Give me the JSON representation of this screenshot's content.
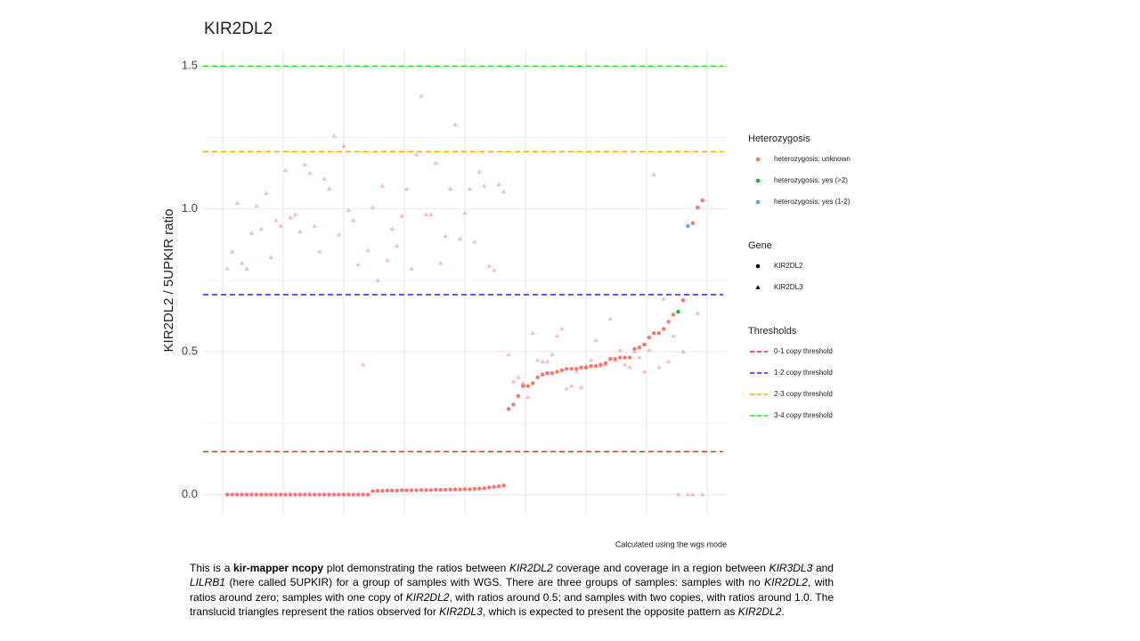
{
  "chart_data": {
    "type": "scatter",
    "title": "KIR2DL2",
    "ylabel": "KIR2DL2 / 5UPKIR ratio",
    "caption": "Calculated using the wgs mode",
    "xlim": [
      -4,
      104.2
    ],
    "ylim": [
      -0.07,
      1.56
    ],
    "xgrid": [
      0,
      12.5,
      25,
      37.5,
      50,
      62.5,
      75,
      87.5,
      100
    ],
    "yminor": [
      0.25,
      0.75,
      1.25
    ],
    "yticks": [
      {
        "value": 0,
        "label": "0.0"
      },
      0.5,
      {
        "value": 1,
        "label": "1.0"
      },
      1.5
    ],
    "grid": true,
    "legend_heterozygosis": {
      "title": "Heterozygosis",
      "items": [
        {
          "name": "heterozygosis: unknown",
          "color": "#f8766d"
        },
        {
          "name": "heterozygosis: yes (>2)",
          "color": "#00ba38"
        },
        {
          "name": "heterozygosis: yes (1-2)",
          "color": "#619cff"
        }
      ]
    },
    "legend_gene": {
      "title": "Gene",
      "items": [
        {
          "name": "KIR2DL2",
          "shape": "circle"
        },
        {
          "name": "KIR2DL3",
          "shape": "triangle"
        }
      ]
    },
    "thresholds": {
      "title": "Thresholds",
      "items": [
        {
          "name": "0-1 copy threshold",
          "color": "#ff2020",
          "value": 0.15
        },
        {
          "name": "1-2 copy threshold",
          "color": "#2020ff",
          "value": 0.7
        },
        {
          "name": "2-3 copy threshold",
          "color": "#ffa500",
          "value": 1.2
        },
        {
          "name": "3-4 copy threshold",
          "color": "#20ee20",
          "value": 1.5
        }
      ]
    },
    "x": [
      1,
      2,
      3,
      4,
      5,
      6,
      7,
      8,
      9,
      10,
      11,
      12,
      13,
      14,
      15,
      16,
      17,
      18,
      19,
      20,
      21,
      22,
      23,
      24,
      25,
      26,
      27,
      28,
      29,
      30,
      31,
      32,
      33,
      34,
      35,
      36,
      37,
      38,
      39,
      40,
      41,
      42,
      43,
      44,
      45,
      46,
      47,
      48,
      49,
      50,
      51,
      52,
      53,
      54,
      55,
      56,
      57,
      58,
      59,
      60,
      61,
      62,
      63,
      64,
      65,
      66,
      67,
      68,
      69,
      70,
      71,
      72,
      73,
      74,
      75,
      76,
      77,
      78,
      79,
      80,
      81,
      82,
      83,
      84,
      85,
      86,
      87,
      88,
      89,
      90,
      91,
      92,
      93,
      94,
      95,
      96,
      97,
      98,
      99
    ],
    "series": [
      {
        "name": "KIR2DL2",
        "shape": "circle",
        "opacity": 1,
        "values": [
          0,
          0,
          0,
          0,
          0,
          0,
          0,
          0,
          0,
          0,
          0,
          0,
          0,
          0,
          0,
          0,
          0,
          0,
          0,
          0,
          0,
          0,
          0,
          0,
          0,
          0,
          0,
          0,
          0,
          0,
          0.012,
          0.013,
          0.013,
          0.014,
          0.014,
          0.014,
          0.015,
          0.015,
          0.015,
          0.015,
          0.016,
          0.016,
          0.016,
          0.017,
          0.017,
          0.017,
          0.018,
          0.018,
          0.018,
          0.019,
          0.019,
          0.02,
          0.021,
          0.022,
          0.025,
          0.027,
          0.029,
          0.032,
          0.3,
          0.315,
          0.345,
          0.38,
          0.38,
          0.39,
          0.41,
          0.42,
          0.425,
          0.425,
          0.43,
          0.435,
          0.44,
          0.44,
          0.44,
          0.445,
          0.445,
          0.45,
          0.45,
          0.455,
          0.46,
          0.475,
          0.475,
          0.48,
          0.48,
          0.48,
          0.51,
          0.515,
          0.525,
          0.55,
          0.565,
          0.565,
          0.58,
          0.605,
          0.63,
          0.64,
          0.68,
          0.94,
          0.95,
          1.005,
          1.03
        ],
        "groups": [
          0,
          0,
          0,
          0,
          0,
          0,
          0,
          0,
          0,
          0,
          0,
          0,
          0,
          0,
          0,
          0,
          0,
          0,
          0,
          0,
          0,
          0,
          0,
          0,
          0,
          0,
          0,
          0,
          0,
          0,
          0,
          0,
          0,
          0,
          0,
          0,
          0,
          0,
          0,
          0,
          0,
          0,
          0,
          0,
          0,
          0,
          0,
          0,
          0,
          0,
          0,
          0,
          0,
          0,
          0,
          0,
          0,
          0,
          0,
          0,
          0,
          0,
          0,
          0,
          0,
          0,
          0,
          0,
          0,
          0,
          0,
          0,
          0,
          0,
          0,
          0,
          0,
          0,
          0,
          0,
          0,
          0,
          0,
          0,
          0,
          0,
          0,
          0,
          0,
          0,
          0,
          0,
          0,
          1,
          0,
          2,
          0,
          0,
          0
        ]
      },
      {
        "name": "KIR2DL3",
        "shape": "triangle",
        "opacity": 0.5,
        "values": [
          0.79,
          0.85,
          1.02,
          0.81,
          0.79,
          0.915,
          1.01,
          0.93,
          1.055,
          0.83,
          0.96,
          0.94,
          1.135,
          0.97,
          0.98,
          0.92,
          1.155,
          1.125,
          0.94,
          0.85,
          1.105,
          1.07,
          1.255,
          0.91,
          1.22,
          0.995,
          0.96,
          0.805,
          0.455,
          0.855,
          1.005,
          0.75,
          1.08,
          0.82,
          0.93,
          0.87,
          0.975,
          1.07,
          0.79,
          1.19,
          1.395,
          0.98,
          0.98,
          1.16,
          0.81,
          0.905,
          1.07,
          1.295,
          0.895,
          0.985,
          1.07,
          0.885,
          1.13,
          1.08,
          0.8,
          0.785,
          1.085,
          1.06,
          0.49,
          0.395,
          0.41,
          0.39,
          0.34,
          0.565,
          0.47,
          0.465,
          0.465,
          0.49,
          0.555,
          0.58,
          0.37,
          0.38,
          0.43,
          0.375,
          0.45,
          0.47,
          0.54,
          0.45,
          0.455,
          0.615,
          0.47,
          0.505,
          0.455,
          0.445,
          0.5,
          0.48,
          0.43,
          0.505,
          1.12,
          0.445,
          0.685,
          0.465,
          0.555,
          0,
          0.5,
          0,
          0,
          0.635,
          0
        ],
        "groups": [
          0,
          0,
          0,
          0,
          0,
          0,
          0,
          0,
          0,
          0,
          0,
          0,
          0,
          0,
          0,
          0,
          0,
          0,
          0,
          0,
          0,
          0,
          0,
          0,
          0,
          0,
          0,
          0,
          0,
          0,
          0,
          0,
          0,
          0,
          0,
          0,
          0,
          0,
          0,
          0,
          0,
          0,
          0,
          0,
          0,
          0,
          0,
          0,
          0,
          0,
          0,
          0,
          0,
          0,
          0,
          0,
          0,
          0,
          0,
          0,
          0,
          0,
          0,
          0,
          0,
          0,
          0,
          0,
          0,
          0,
          0,
          0,
          0,
          0,
          0,
          0,
          0,
          0,
          0,
          0,
          0,
          0,
          0,
          0,
          0,
          0,
          0,
          0,
          0,
          0,
          0,
          0,
          0,
          0,
          0,
          0,
          0,
          0,
          0
        ]
      }
    ]
  },
  "description": [
    {
      "text": "This is a ",
      "style": "n"
    },
    {
      "text": "kir-mapper ncopy",
      "style": "b"
    },
    {
      "text": " plot demonstrating the ratios between ",
      "style": "n"
    },
    {
      "text": "KIR2DL2",
      "style": "i"
    },
    {
      "text": " coverage and coverage in a region between ",
      "style": "n"
    },
    {
      "text": "KIR3DL3",
      "style": "i"
    },
    {
      "text": " and ",
      "style": "n"
    },
    {
      "text": "LILRB1",
      "style": "i"
    },
    {
      "text": " (here called 5UPKIR) for a group of samples with WGS. There are three groups of samples: samples with no ",
      "style": "n"
    },
    {
      "text": "KIR2DL2",
      "style": "i"
    },
    {
      "text": ", with ratios around zero; samples with one copy of ",
      "style": "n"
    },
    {
      "text": "KIR2DL2",
      "style": "i"
    },
    {
      "text": ", with ratios around 0.5; and samples with two copies, with ratios around 1.0. The translucid triangles represent the ratios observed for ",
      "style": "n"
    },
    {
      "text": "KIR2DL3",
      "style": "i"
    },
    {
      "text": ", which is expected to present the opposite pattern as ",
      "style": "n"
    },
    {
      "text": "KIR2DL2",
      "style": "i"
    },
    {
      "text": ".",
      "style": "n"
    }
  ]
}
